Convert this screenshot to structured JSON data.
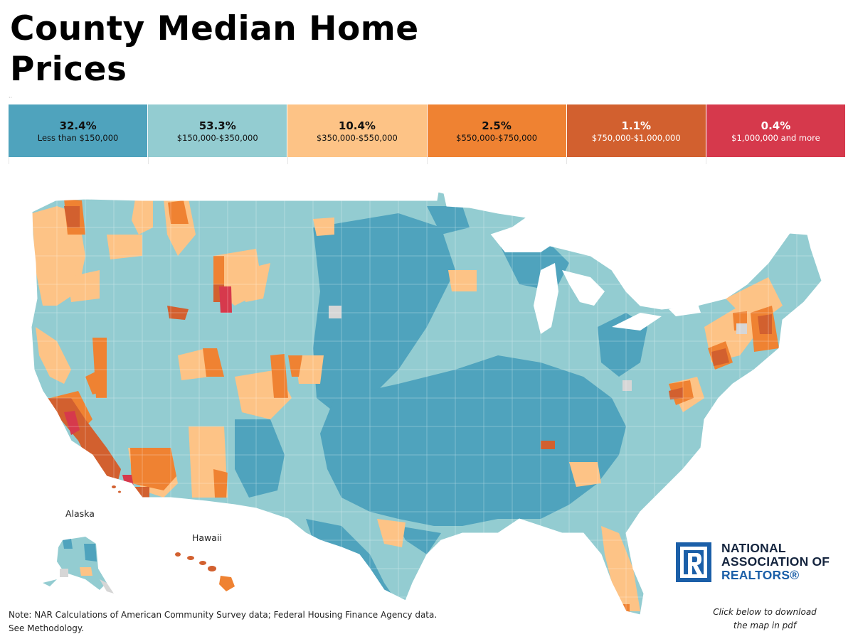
{
  "title": "County Median Home Prices",
  "legend": [
    {
      "pct": "32.4%",
      "range": "Less than $150,000",
      "color": "#4fa3bd",
      "text_color": "#111111"
    },
    {
      "pct": "53.3%",
      "range": "$150,000-$350,000",
      "color": "#93ccd1",
      "text_color": "#111111"
    },
    {
      "pct": "10.4%",
      "range": "$350,000-$550,000",
      "color": "#fdc386",
      "text_color": "#111111"
    },
    {
      "pct": "2.5%",
      "range": "$550,000-$750,000",
      "color": "#ef8232",
      "text_color": "#111111"
    },
    {
      "pct": "1.1%",
      "range": "$750,000-$1,000,000",
      "color": "#d2602f",
      "text_color": "#ffffff"
    },
    {
      "pct": "0.4%",
      "range": "$1,000,000 and more",
      "color": "#d6394c",
      "text_color": "#ffffff"
    }
  ],
  "map": {
    "labels": {
      "alaska": "Alaska",
      "hawaii": "Hawaii"
    },
    "no_data_color": "#d6d6d6"
  },
  "note": {
    "line1": "Note: NAR Calculations of American Community Survey data; Federal Housing Finance Agency data.",
    "line2": "See Methodology."
  },
  "download": {
    "line1": "Click below to download",
    "line2": "the map in pdf"
  },
  "logo": {
    "line1": "NATIONAL",
    "line2": "ASSOCIATION OF",
    "line3": "REALTORS®",
    "brand_color": "#1b5fa8"
  }
}
